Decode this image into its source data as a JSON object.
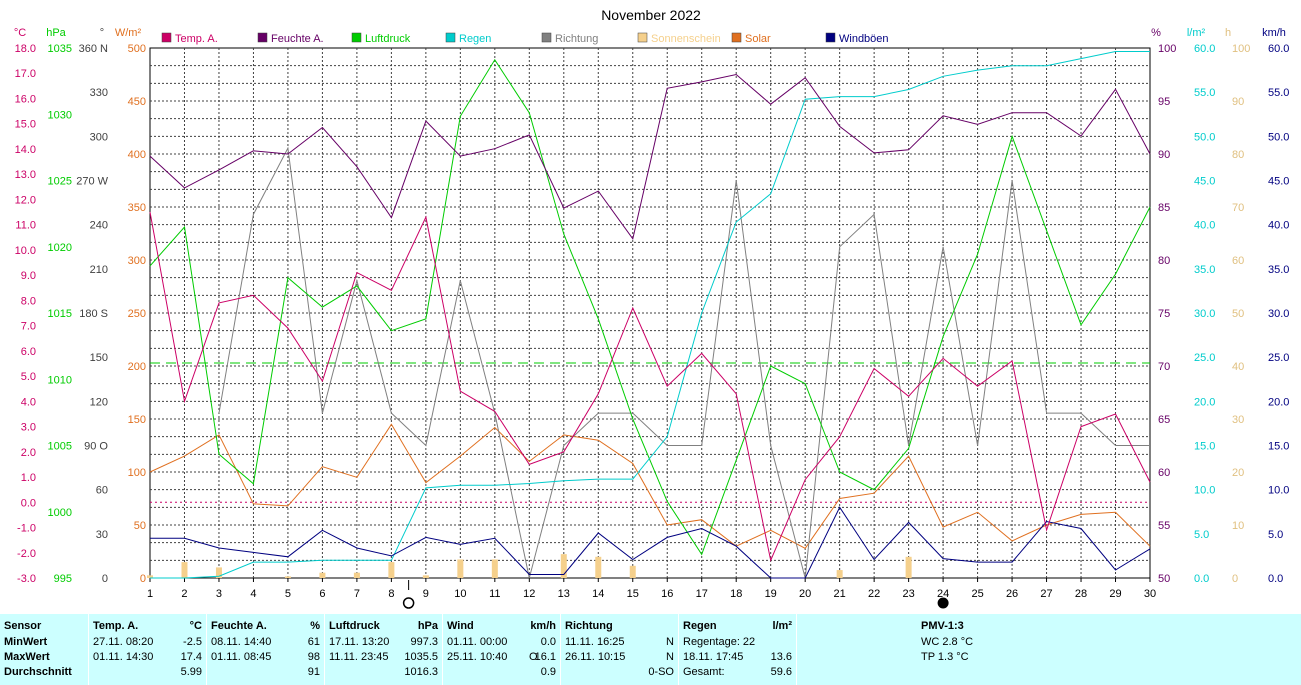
{
  "chart_data": {
    "type": "line",
    "title": "November 2022",
    "x": [
      1,
      2,
      3,
      4,
      5,
      6,
      7,
      8,
      9,
      10,
      11,
      12,
      13,
      14,
      15,
      16,
      17,
      18,
      19,
      20,
      21,
      22,
      23,
      24,
      25,
      26,
      27,
      28,
      29,
      30
    ],
    "legend": [
      "Temp. A.",
      "Feuchte A.",
      "Luftdruck",
      "Regen",
      "Richtung",
      "Sonnenschein",
      "Solar",
      "Windböen"
    ],
    "axes": {
      "temp": {
        "unit": "°C",
        "ylim": [
          -3,
          18
        ],
        "ticks": [
          "18.0",
          "17.0",
          "16.0",
          "15.0",
          "14.0",
          "13.0",
          "12.0",
          "11.0",
          "10.0",
          "9.0",
          "8.0",
          "7.0",
          "6.0",
          "5.0",
          "4.0",
          "3.0",
          "2.0",
          "1.0",
          "0.0",
          "-1.0",
          "-2.0",
          "-3.0"
        ],
        "color": "#cc0066"
      },
      "pressure": {
        "unit": "hPa",
        "ylim": [
          995,
          1040
        ],
        "ticks": [
          "1035",
          "1030",
          "1025",
          "1020",
          "1015",
          "1010",
          "1005",
          "1000",
          "995"
        ],
        "color": "#00cc00"
      },
      "direction": {
        "unit": "°",
        "ylim": [
          0,
          360
        ],
        "ticks": [
          "360 N",
          "330",
          "300",
          "270 W",
          "240",
          "210",
          "180 S",
          "150",
          "120",
          "90 O",
          "60",
          "30",
          "0"
        ],
        "color": "#404040"
      },
      "solar": {
        "unit": "W/m²",
        "ylim": [
          0,
          500
        ],
        "ticks": [
          "500",
          "450",
          "400",
          "350",
          "300",
          "250",
          "200",
          "150",
          "100",
          "50",
          "0"
        ],
        "color": "#e07020"
      },
      "humidity": {
        "unit": "%",
        "ylim": [
          50,
          100
        ],
        "ticks": [
          "100",
          "95",
          "90",
          "85",
          "80",
          "75",
          "70",
          "65",
          "60",
          "55",
          "50"
        ],
        "color": "#660066"
      },
      "rain": {
        "unit": "l/m²",
        "ylim": [
          0,
          60
        ],
        "ticks": [
          "60.0",
          "55.0",
          "50.0",
          "45.0",
          "40.0",
          "35.0",
          "30.0",
          "25.0",
          "20.0",
          "15.0",
          "10.0",
          "5.0",
          "0.0"
        ],
        "color": "#00cccc"
      },
      "sunshine": {
        "unit": "h",
        "ylim": [
          0,
          100
        ],
        "ticks": [
          "100",
          "90",
          "80",
          "70",
          "60",
          "50",
          "40",
          "30",
          "20",
          "10",
          "0"
        ],
        "color": "#e0c080"
      },
      "wind": {
        "unit": "km/h",
        "ylim": [
          0,
          60
        ],
        "ticks": [
          "60.0",
          "55.0",
          "50.0",
          "45.0",
          "40.0",
          "35.0",
          "30.0",
          "25.0",
          "20.0",
          "15.0",
          "10.0",
          "5.0",
          "0.0"
        ],
        "color": "#000080"
      }
    },
    "series": [
      {
        "name": "Temp. A.",
        "axis": "temp",
        "color": "#cc0066",
        "values": [
          11.5,
          4.0,
          7.9,
          8.2,
          6.9,
          4.8,
          9.1,
          8.4,
          11.3,
          4.4,
          3.6,
          1.5,
          2.0,
          4.3,
          7.7,
          4.6,
          5.9,
          4.3,
          -2.3,
          0.9,
          2.6,
          5.3,
          4.2,
          5.7,
          4.6,
          5.6,
          -1.1,
          3.0,
          3.5,
          0.8
        ]
      },
      {
        "name": "Feuchte A.",
        "axis": "feuchte",
        "color": "#660066",
        "values": [
          89.8,
          86.8,
          88.5,
          90.3,
          90.0,
          92.5,
          88.8,
          84.0,
          93.1,
          89.8,
          90.5,
          91.8,
          84.9,
          86.5,
          82.0,
          96.2,
          96.8,
          97.5,
          94.7,
          97.2,
          92.6,
          90.1,
          90.4,
          93.6,
          92.8,
          93.9,
          93.9,
          91.7,
          96.1,
          90.0
        ]
      },
      {
        "name": "Luftdruck",
        "axis": "pressure",
        "color": "#00cc00",
        "values": [
          1021.5,
          1024.8,
          1005.5,
          1003.0,
          1020.5,
          1018.0,
          1019.8,
          1016.0,
          1017.0,
          1034.2,
          1039.0,
          1034.5,
          1024.2,
          1017.0,
          1008.5,
          1001.5,
          997.0,
          1005.0,
          1013.0,
          1011.5,
          1004.0,
          1002.5,
          1006.0,
          1015.5,
          1022.5,
          1032.5,
          1024.5,
          1016.5,
          1020.8,
          1026.5
        ]
      },
      {
        "name": "Regen",
        "axis": "rain",
        "color": "#00cccc",
        "values": [
          0,
          0,
          0.2,
          1.8,
          1.8,
          2.0,
          2.0,
          2.0,
          10.2,
          10.5,
          10.5,
          10.7,
          11.0,
          11.2,
          11.2,
          16.0,
          30.0,
          40.3,
          43.5,
          54.2,
          54.5,
          54.5,
          55.3,
          56.8,
          57.5,
          58.0,
          58.0,
          58.8,
          59.6,
          59.6
        ]
      },
      {
        "name": "Richtung",
        "axis": "direction",
        "color": "#808080",
        "values": [
          null,
          null,
          112,
          247,
          292,
          112,
          202,
          112,
          90,
          202,
          112,
          0,
          90,
          112,
          112,
          90,
          90,
          270,
          90,
          0,
          225,
          247,
          90,
          225,
          90,
          270,
          112,
          112,
          90,
          90
        ]
      },
      {
        "name": "Solar",
        "axis": "solar",
        "color": "#e07020",
        "values": [
          100,
          115,
          135,
          70,
          68,
          105,
          95,
          145,
          90,
          115,
          142,
          110,
          135,
          130,
          108,
          50,
          55,
          30,
          45,
          28,
          75,
          80,
          115,
          48,
          62,
          35,
          50,
          60,
          62,
          30
        ]
      },
      {
        "name": "Windböen",
        "axis": "wind",
        "color": "#000080",
        "values": [
          4.5,
          4.5,
          3.4,
          2.9,
          2.4,
          5.4,
          3.4,
          2.5,
          4.6,
          3.8,
          4.5,
          0.4,
          0.4,
          5.1,
          2.1,
          4.6,
          5.6,
          3.6,
          0,
          0,
          8.0,
          2.1,
          6.3,
          2.2,
          1.8,
          1.8,
          6.4,
          5.6,
          0.9,
          3.3
        ]
      },
      {
        "name": "Sonnenschein",
        "axis": "sunshine",
        "color": "#f5d08c",
        "values": [
          0.5,
          3,
          2,
          0,
          0.3,
          1,
          1,
          3,
          0.5,
          3.5,
          3.5,
          0,
          4.5,
          4,
          2.3,
          0,
          0,
          0,
          0,
          0,
          1.5,
          0,
          4,
          0,
          0,
          0,
          0,
          0,
          0,
          0
        ]
      }
    ],
    "reference_lines": [
      {
        "axis": "temp",
        "value": 0.0,
        "color": "#cc0066",
        "style": "dotted"
      },
      {
        "axis": "pressure",
        "value": 1013.25,
        "color": "#00cc00",
        "style": "dashed"
      }
    ],
    "moon_markers": [
      {
        "day": 8.5,
        "phase": "full"
      },
      {
        "day": 24,
        "phase": "new"
      }
    ],
    "grid": true
  },
  "summary": {
    "sensor": {
      "title": "Sensor",
      "rows": [
        "MinWert",
        "MaxWert",
        "Durchschnitt"
      ]
    },
    "temp": {
      "title": "Temp. A.",
      "unit": "°C",
      "min_time": "27.11.  08:20",
      "min": "-2.5",
      "max_time": "01.11.  14:30",
      "max": "17.4",
      "avg": "5.99"
    },
    "humidity": {
      "title": "Feuchte A.",
      "unit": "%",
      "min_time": "08.11.  14:40",
      "min": "61",
      "max_time": "01.11.  08:45",
      "max": "98",
      "avg": "91"
    },
    "pressure": {
      "title": "Luftdruck",
      "unit": "hPa",
      "min_time": "17.11.  13:20",
      "min": "997.3",
      "max_time": "11.11.  23:45",
      "max": "1035.5",
      "avg": "1016.3"
    },
    "wind": {
      "title": "Wind",
      "unit": "km/h",
      "min_time": "01.11.  00:00",
      "min": "0.0",
      "max_time": "25.11.  10:40",
      "max_dir": "O",
      "max": "16.1",
      "avg": "0.9"
    },
    "direction": {
      "title": "Richtung",
      "min_time": "11.11.  16:25",
      "min": "N",
      "max_time": "26.11.  10:15",
      "max": "N",
      "avg": "0-SO"
    },
    "rain": {
      "title": "Regen",
      "unit": "l/m²",
      "days": "Regentage: 22",
      "max_time": "18.11.  17:45",
      "max": "13.6",
      "total_label": "Gesamt:",
      "total": "59.6"
    },
    "pmv": {
      "title": "PMV-1:3",
      "wc": "WC 2.8 °C",
      "tp": "TP 1.3 °C"
    }
  }
}
